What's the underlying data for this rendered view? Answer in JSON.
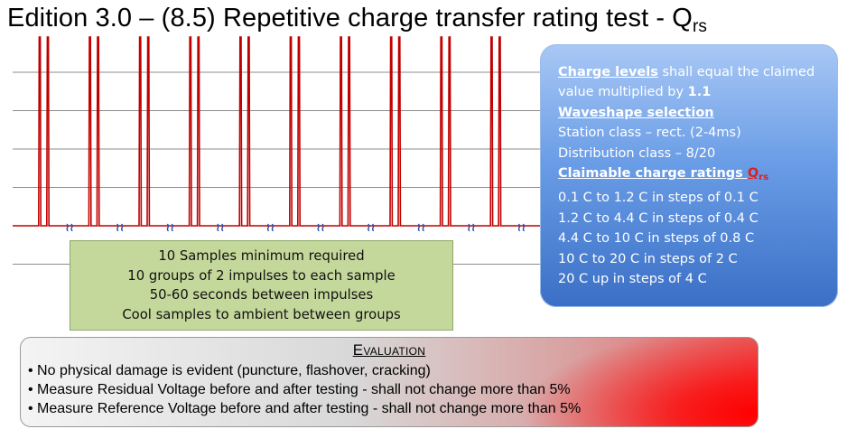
{
  "title": {
    "main": "Edition 3.0 – (8.5) Repetitive charge transfer rating test - Q",
    "sub": "rs"
  },
  "info": {
    "charge_levels_heading": "Charge levels",
    "charge_levels_text": " shall equal the claimed",
    "charge_levels_text2": "value multiplied by ",
    "multiplier": "1.1",
    "waveshape_heading": "Waveshape selection",
    "station_class": "Station class – rect. (2-4ms)",
    "distribution_class": "Distribution class – 8/20",
    "claimable_heading": "Claimable charge ratings ",
    "q_symbol": "Q",
    "q_sub": "rs",
    "ratings": [
      "0.1 C to 1.2 C in steps of 0.1 C",
      "1.2 C to 4.4 C in steps of 0.4 C",
      "4.4 C to 10 C in steps of 0.8 C",
      "10 C to 20 C in steps of 2 C",
      "20 C up in steps of 4 C"
    ]
  },
  "samples": {
    "lines": [
      "10 Samples minimum required",
      "10 groups of 2 impulses to each sample",
      "50-60 seconds between impulses",
      "Cool samples to ambient between groups"
    ]
  },
  "evaluation": {
    "heading": "Evaluation",
    "items": [
      "• No physical damage is evident (puncture, flashover, cracking)",
      "• Measure Residual Voltage before and after testing - shall not change more than 5%",
      "• Measure  Reference Voltage before and after testing - shall not change more than 5%"
    ]
  },
  "break_symbol": "≀≀",
  "colors": {
    "pulse": "#c00000",
    "grid": "#8c8c8c",
    "break": "#2a4fa8"
  },
  "chart_data": {
    "type": "line",
    "description_groups": 10,
    "impulses_per_group": 2,
    "grid_lines": 6
  }
}
